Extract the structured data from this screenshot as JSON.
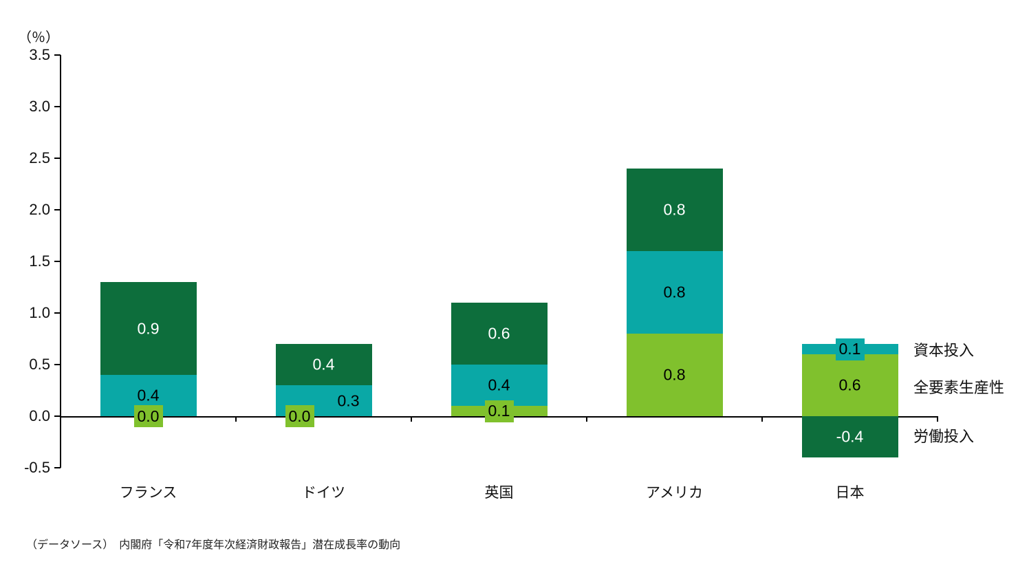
{
  "chart_data": {
    "type": "bar",
    "stacked": true,
    "unit_label": "（％）",
    "categories": [
      "フランス",
      "ドイツ",
      "英国",
      "アメリカ",
      "日本"
    ],
    "series": [
      {
        "name": "全要素生産性",
        "color": "#80c12d",
        "label_color": "#000000",
        "values": [
          0.0,
          0.0,
          0.1,
          0.8,
          0.6
        ]
      },
      {
        "name": "資本投入",
        "color": "#0aa8a6",
        "label_color": "#000000",
        "values": [
          0.4,
          0.3,
          0.4,
          0.8,
          0.1
        ]
      },
      {
        "name": "労働投入",
        "color": "#0d6e3c",
        "label_color": "#ffffff",
        "values": [
          0.9,
          0.4,
          0.6,
          0.8,
          -0.4
        ]
      }
    ],
    "y_axis": {
      "min": -0.5,
      "max": 3.5,
      "tick_step": 0.5,
      "tick_labels": [
        "3.5",
        "3.0",
        "2.5",
        "2.0",
        "1.5",
        "1.0",
        "0.5",
        "0.0",
        "-0.5"
      ]
    },
    "legend": [
      "資本投入",
      "全要素生産性",
      "労働投入"
    ],
    "legend_position": "right",
    "grid": false,
    "source": "（データソース）　内閣府「令和7年度年次経済財政報告」潜在成長率の動向"
  }
}
